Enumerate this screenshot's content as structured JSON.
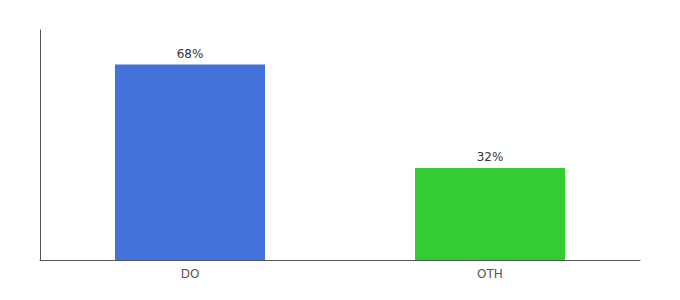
{
  "chart_data": {
    "type": "bar",
    "categories": [
      "DO",
      "OTH"
    ],
    "values": [
      68,
      32
    ],
    "value_labels": [
      "68%",
      "32%"
    ],
    "colors": [
      "#4472db",
      "#33cc33"
    ],
    "ylim": [
      0,
      80
    ],
    "yticks": [],
    "data_labels": true,
    "tick_labels": "x",
    "grid": false
  }
}
